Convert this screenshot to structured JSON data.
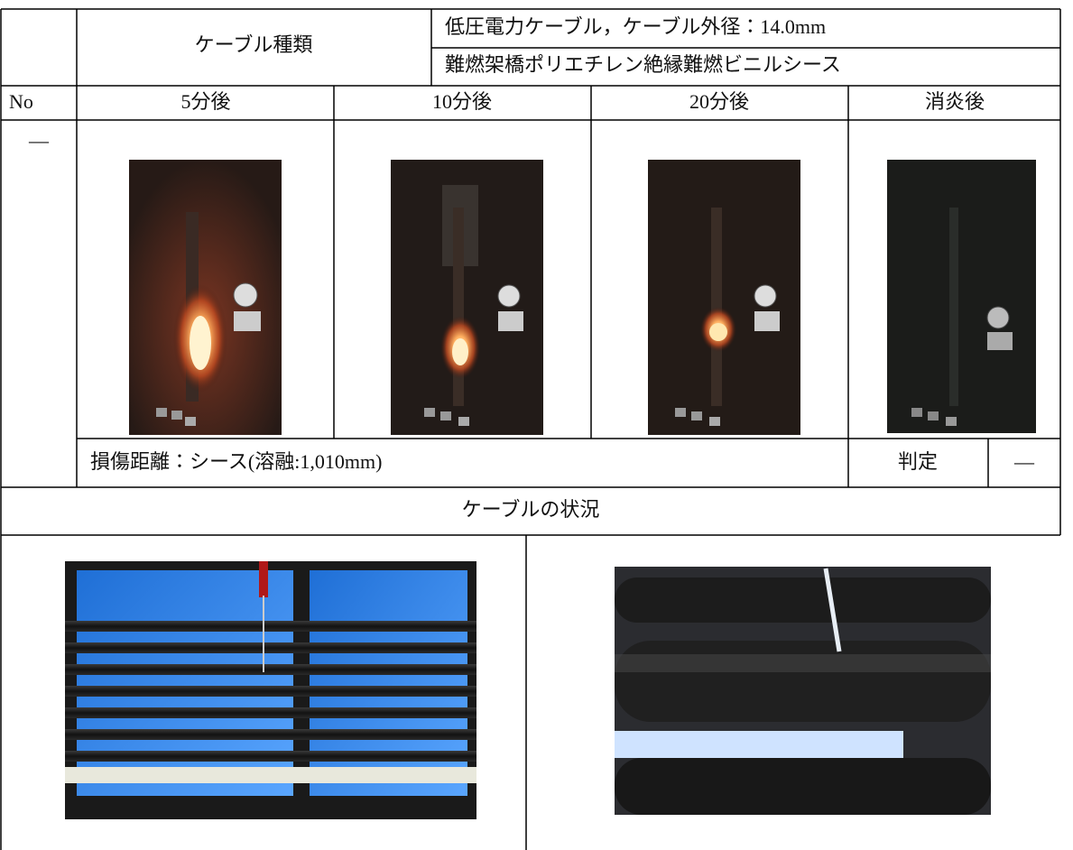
{
  "header": {
    "cable_type_label": "ケーブル種類",
    "cable_spec_1": "低圧電力ケーブル，ケーブル外径：14.0mm",
    "cable_spec_2": "難燃架橋ポリエチレン絶縁難燃ビニルシース"
  },
  "table": {
    "columns": [
      "No",
      "5分後",
      "10分後",
      "20分後",
      "消炎後"
    ],
    "no_value": "—",
    "damage": "損傷距離：シース(溶融:1,010mm)",
    "judgement_label": "判定",
    "judgement_value": "—"
  },
  "section": {
    "title": "ケーブルの状況"
  }
}
